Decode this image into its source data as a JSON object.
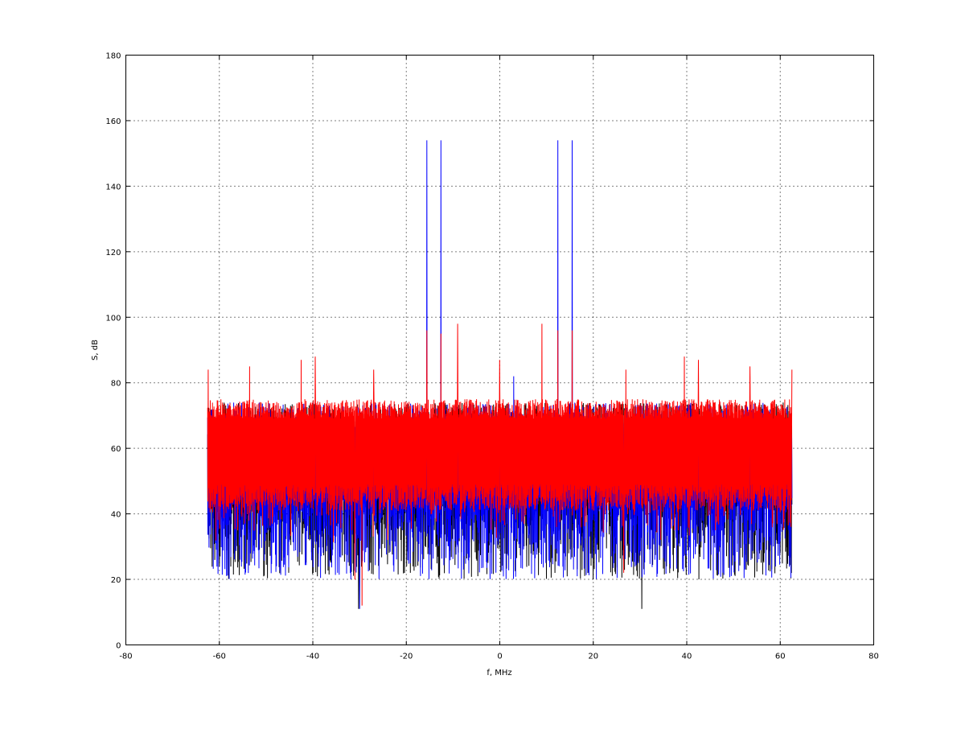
{
  "chart_data": {
    "type": "line",
    "title": "",
    "xlabel": "f, MHz",
    "ylabel": "S, dB",
    "xlim": [
      -80,
      80
    ],
    "ylim": [
      0,
      180
    ],
    "xticks": [
      -80,
      -60,
      -40,
      -20,
      0,
      20,
      40,
      60,
      80
    ],
    "yticks": [
      0,
      20,
      40,
      60,
      80,
      100,
      120,
      140,
      160,
      180
    ],
    "grid": true,
    "grid_style": "dotted",
    "legend": "none",
    "series": [
      {
        "color": "#000000",
        "x_range": [
          -62.5,
          62.5
        ],
        "noise_band": [
          11,
          75
        ],
        "peaks": [
          [
            -30.2,
            11
          ],
          [
            30.4,
            11
          ],
          [
            -60.0,
            24
          ]
        ]
      },
      {
        "color": "#0000ff",
        "x_range": [
          -62.5,
          62.5
        ],
        "noise_band": [
          11,
          76
        ],
        "peaks": [
          [
            -15.6,
            154
          ],
          [
            -12.6,
            154
          ],
          [
            12.4,
            154
          ],
          [
            15.5,
            154
          ],
          [
            3.0,
            82
          ],
          [
            -30.0,
            11
          ]
        ]
      },
      {
        "color": "#ff0000",
        "x_range": [
          -62.5,
          62.5
        ],
        "noise_band": [
          41,
          75
        ],
        "peaks": [
          [
            -62.4,
            84
          ],
          [
            62.6,
            84
          ],
          [
            -15.6,
            96
          ],
          [
            -12.6,
            95
          ],
          [
            -9.0,
            98
          ],
          [
            9.0,
            98
          ],
          [
            12.4,
            96
          ],
          [
            15.5,
            96
          ],
          [
            0.0,
            87
          ],
          [
            -42.5,
            87
          ],
          [
            -39.5,
            88
          ],
          [
            39.5,
            88
          ],
          [
            42.5,
            87
          ],
          [
            -53.5,
            85
          ],
          [
            53.5,
            85
          ],
          [
            -27,
            84
          ],
          [
            27,
            84
          ],
          [
            -31,
            20
          ],
          [
            -29.5,
            12
          ],
          [
            26.5,
            22
          ]
        ]
      }
    ]
  }
}
